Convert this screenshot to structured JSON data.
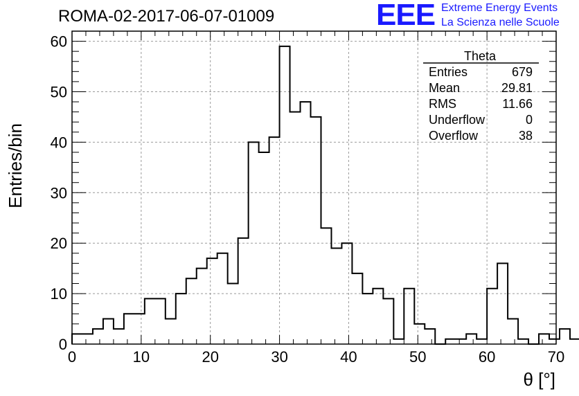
{
  "header": {
    "title": "ROMA-02-2017-06-07-01009",
    "logo_mark": "EEE",
    "logo_line_1": "Extreme Energy Events",
    "logo_line_2": "La Scienza nelle Scuole"
  },
  "colors": {
    "logo": "#1a1aff",
    "line": "#000000",
    "grid": "#999999"
  },
  "chart_data": {
    "type": "bar",
    "xlabel": "θ [°]",
    "ylabel": "Entries/bin",
    "xlim": [
      0,
      70
    ],
    "ylim": [
      0,
      62
    ],
    "xticks": [
      0,
      10,
      20,
      30,
      40,
      50,
      60,
      70
    ],
    "yticks": [
      0,
      10,
      20,
      30,
      40,
      50,
      60
    ],
    "grid": true,
    "bin_width": 1.5,
    "bin_start": 0,
    "values": [
      2,
      2,
      3,
      5,
      3,
      6,
      6,
      9,
      9,
      5,
      10,
      13,
      15,
      17,
      18,
      12,
      21,
      40,
      38,
      41,
      59,
      46,
      48,
      45,
      23,
      19,
      20,
      14,
      10,
      11,
      9,
      1,
      11,
      4,
      3,
      0,
      1,
      1,
      2,
      1,
      11,
      16,
      5,
      1,
      0,
      2,
      1,
      3,
      1,
      0
    ],
    "stats": {
      "title": "Theta",
      "placement": "top-right",
      "rows": [
        {
          "label": "Entries",
          "value": "679"
        },
        {
          "label": "Mean",
          "value": "29.81"
        },
        {
          "label": "RMS",
          "value": "11.66"
        },
        {
          "label": "Underflow",
          "value": "0"
        },
        {
          "label": "Overflow",
          "value": "38"
        }
      ]
    }
  }
}
